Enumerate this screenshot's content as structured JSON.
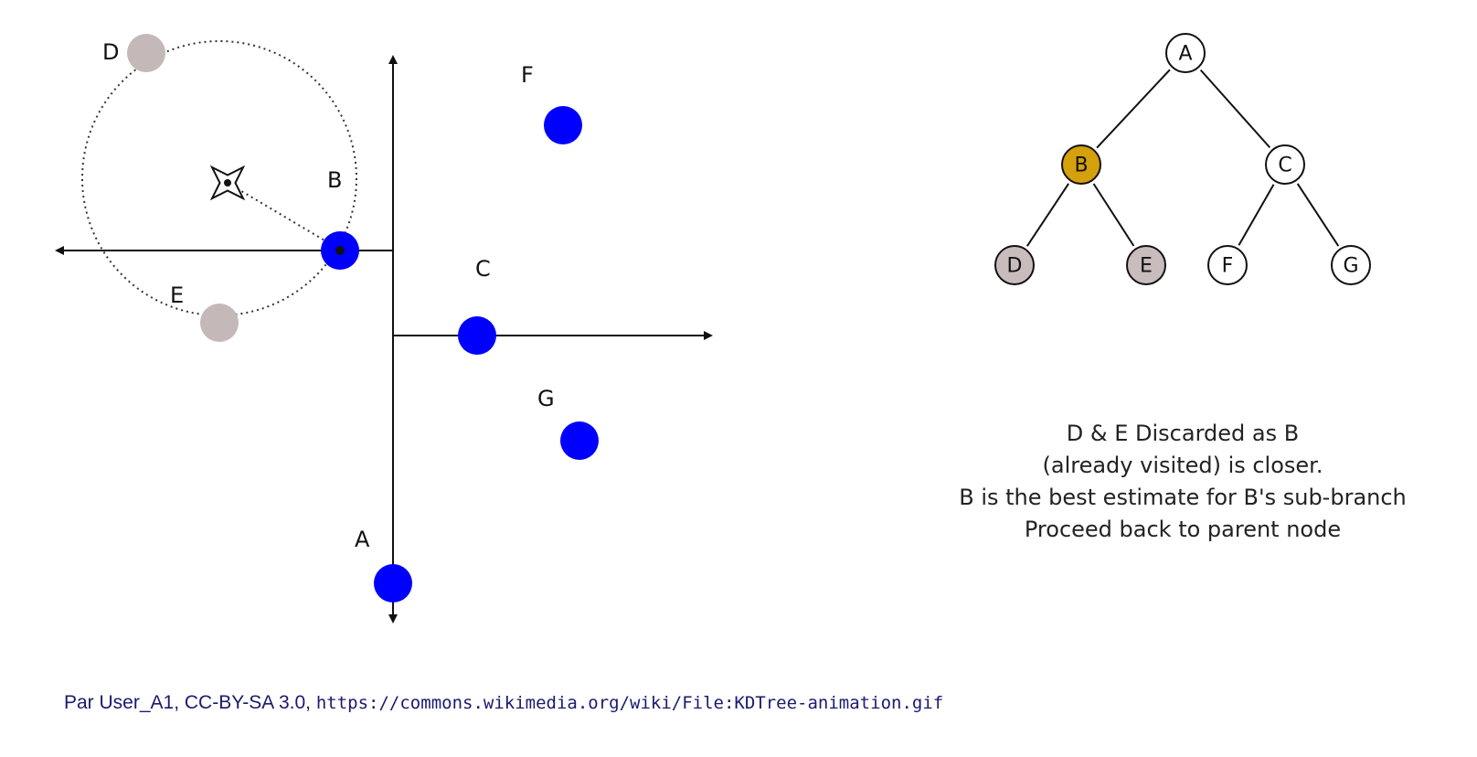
{
  "points": [
    {
      "id": "A",
      "label": "A",
      "state": "active"
    },
    {
      "id": "B",
      "label": "B",
      "state": "active"
    },
    {
      "id": "C",
      "label": "C",
      "state": "active"
    },
    {
      "id": "D",
      "label": "D",
      "state": "discarded"
    },
    {
      "id": "E",
      "label": "E",
      "state": "discarded"
    },
    {
      "id": "F",
      "label": "F",
      "state": "active"
    },
    {
      "id": "G",
      "label": "G",
      "state": "active"
    }
  ],
  "tree": {
    "nodes": [
      {
        "id": "A",
        "label": "A",
        "state": "normal"
      },
      {
        "id": "B",
        "label": "B",
        "state": "current"
      },
      {
        "id": "C",
        "label": "C",
        "state": "normal"
      },
      {
        "id": "D",
        "label": "D",
        "state": "discarded"
      },
      {
        "id": "E",
        "label": "E",
        "state": "discarded"
      },
      {
        "id": "F",
        "label": "F",
        "state": "normal"
      },
      {
        "id": "G",
        "label": "G",
        "state": "normal"
      }
    ],
    "edges": [
      [
        "A",
        "B"
      ],
      [
        "A",
        "C"
      ],
      [
        "B",
        "D"
      ],
      [
        "B",
        "E"
      ],
      [
        "C",
        "F"
      ],
      [
        "C",
        "G"
      ]
    ]
  },
  "caption": [
    "D & E Discarded as B",
    "(already visited) is closer.",
    "B is the best estimate for B's sub-branch",
    "Proceed back to parent node"
  ],
  "colors": {
    "active_point": "#0000ff",
    "discarded_point": "#c4b8b8",
    "current_node": "#d4a00c",
    "discarded_node": "#c9bcbc",
    "normal_node": "#ffffff"
  },
  "attribution": {
    "text": "Par User_A1, CC-BY-SA 3.0,",
    "url": "https://commons.wikimedia.org/wiki/File:KDTree-animation.gif"
  }
}
